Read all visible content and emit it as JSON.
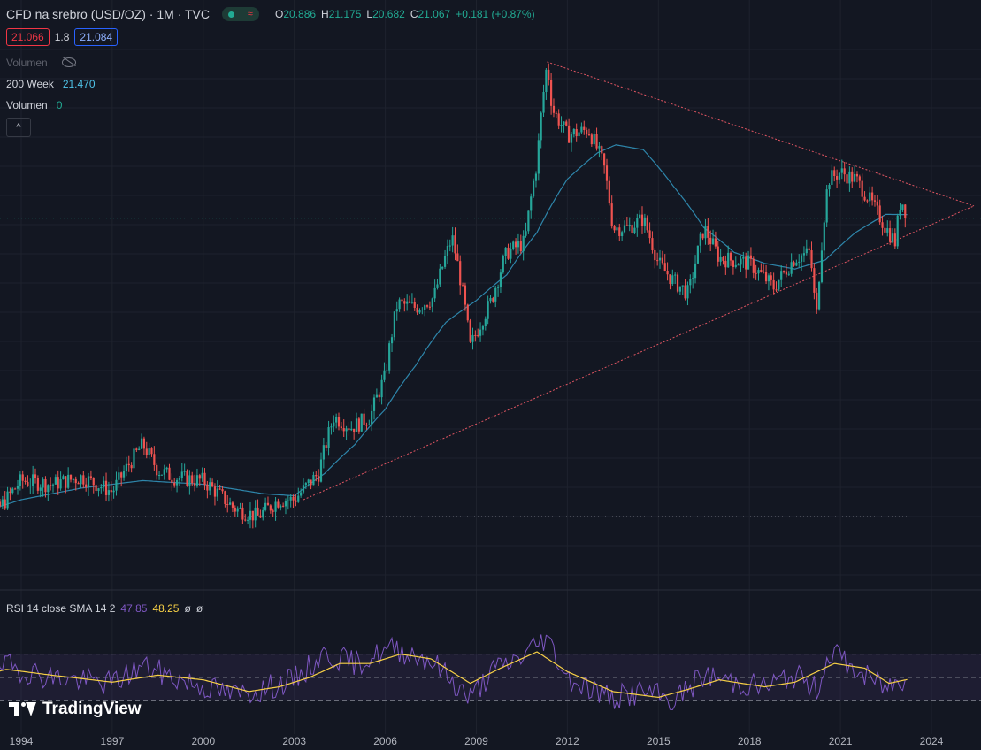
{
  "header": {
    "title": "CFD na srebro (USD/OZ) · 1M · TVC",
    "ohlc": [
      {
        "k": "O",
        "v": "20.886"
      },
      {
        "k": "H",
        "v": "21.175"
      },
      {
        "k": "L",
        "v": "20.682"
      },
      {
        "k": "C",
        "v": "21.067"
      },
      {
        "k": "",
        "v": "+0.181 (+0.87%)"
      }
    ],
    "sell_price": "21.066",
    "spread": "1.8",
    "buy_price": "21.084"
  },
  "indicators": {
    "volume_hidden_label": "Volumen",
    "ma_label": "200 Week",
    "ma_value": "21.470",
    "volume_label": "Volumen",
    "volume_value": "0",
    "collapse_icon": "chevron-up-icon"
  },
  "rsi": {
    "label": "RSI 14 close SMA 14 2",
    "value": "47.85",
    "sma_value": "48.25",
    "extra1": "ø",
    "extra2": "ø",
    "bands": [
      30,
      50,
      70
    ]
  },
  "brand": {
    "name": "TradingView"
  },
  "colors": {
    "background": "#131722",
    "up": "#26a69a",
    "down": "#ef5350",
    "ma": "#2e86ab",
    "trend": "#e05562",
    "rsi": "#7e57c2",
    "rsi_sma": "#f7d046"
  },
  "chart_data": {
    "type": "candlestick",
    "title": "CFD na srebro (USD/OZ) · 1M · TVC",
    "x_ticks": [
      "1994",
      "1997",
      "2000",
      "2003",
      "2006",
      "2009",
      "2012",
      "2015",
      "2018",
      "2021",
      "2024"
    ],
    "x_range": [
      1992.3,
      2025.5
    ],
    "y_scale": "log",
    "y_range": [
      3.5,
      60
    ],
    "price_path": [
      [
        1992.3,
        4.2
      ],
      [
        1992.8,
        4.0
      ],
      [
        1993.5,
        4.6
      ],
      [
        1994.0,
        5.1
      ],
      [
        1995.0,
        5.0
      ],
      [
        1996.0,
        5.2
      ],
      [
        1997.0,
        4.8
      ],
      [
        1998.0,
        6.2
      ],
      [
        1998.5,
        5.4
      ],
      [
        1999.0,
        5.2
      ],
      [
        2000.0,
        5.1
      ],
      [
        2001.0,
        4.4
      ],
      [
        2001.8,
        4.2
      ],
      [
        2002.5,
        4.6
      ],
      [
        2003.0,
        4.6
      ],
      [
        2003.8,
        5.3
      ],
      [
        2004.3,
        7.2
      ],
      [
        2004.9,
        6.8
      ],
      [
        2005.5,
        7.2
      ],
      [
        2006.0,
        9.0
      ],
      [
        2006.4,
        13.3
      ],
      [
        2007.0,
        13.0
      ],
      [
        2007.6,
        13.7
      ],
      [
        2008.2,
        19.0
      ],
      [
        2008.8,
        10.5
      ],
      [
        2009.5,
        13.5
      ],
      [
        2010.0,
        17.5
      ],
      [
        2010.6,
        18.5
      ],
      [
        2011.0,
        28.5
      ],
      [
        2011.33,
        48.5
      ],
      [
        2011.5,
        38.0
      ],
      [
        2012.0,
        33.0
      ],
      [
        2012.7,
        34.0
      ],
      [
        2013.2,
        28.0
      ],
      [
        2013.5,
        20.0
      ],
      [
        2014.0,
        20.0
      ],
      [
        2014.5,
        21.0
      ],
      [
        2015.0,
        16.5
      ],
      [
        2015.5,
        15.0
      ],
      [
        2016.0,
        14.0
      ],
      [
        2016.5,
        20.0
      ],
      [
        2017.0,
        17.0
      ],
      [
        2018.0,
        16.5
      ],
      [
        2018.8,
        14.5
      ],
      [
        2019.5,
        17.0
      ],
      [
        2020.0,
        17.5
      ],
      [
        2020.2,
        12.0
      ],
      [
        2020.6,
        26.0
      ],
      [
        2021.0,
        27.0
      ],
      [
        2021.5,
        26.0
      ],
      [
        2022.0,
        23.0
      ],
      [
        2022.5,
        20.0
      ],
      [
        2022.8,
        18.5
      ],
      [
        2023.0,
        23.5
      ],
      [
        2023.2,
        21.067
      ]
    ],
    "ma_200_week": [
      [
        1992.3,
        4.2
      ],
      [
        1994.0,
        4.6
      ],
      [
        1996.0,
        4.9
      ],
      [
        1998.0,
        5.1
      ],
      [
        2000.0,
        5.0
      ],
      [
        2002.0,
        4.75
      ],
      [
        2003.0,
        4.7
      ],
      [
        2004.0,
        5.3
      ],
      [
        2005.0,
        6.2
      ],
      [
        2006.0,
        7.5
      ],
      [
        2007.0,
        9.5
      ],
      [
        2008.0,
        12.0
      ],
      [
        2009.0,
        13.5
      ],
      [
        2010.0,
        15.5
      ],
      [
        2011.0,
        19.5
      ],
      [
        2012.0,
        26.0
      ],
      [
        2013.0,
        30.0
      ],
      [
        2013.6,
        31.3
      ],
      [
        2014.5,
        30.5
      ],
      [
        2015.5,
        25.0
      ],
      [
        2016.5,
        20.0
      ],
      [
        2017.5,
        17.5
      ],
      [
        2018.5,
        16.5
      ],
      [
        2019.5,
        16.0
      ],
      [
        2020.5,
        16.8
      ],
      [
        2021.5,
        19.5
      ],
      [
        2022.5,
        21.5
      ],
      [
        2023.2,
        21.47
      ]
    ],
    "trendlines": [
      {
        "name": "resistance",
        "from": [
          2011.33,
          49.0
        ],
        "to": [
          2025.4,
          22.5
        ]
      },
      {
        "name": "support",
        "from": [
          2003.3,
          4.6
        ],
        "to": [
          2025.4,
          22.5
        ]
      }
    ],
    "reference_levels": [
      21.067,
      4.2
    ],
    "rsi_range": [
      0,
      100
    ],
    "rsi_path": [
      [
        1992.3,
        45
      ],
      [
        1993.5,
        60
      ],
      [
        1995.0,
        50
      ],
      [
        1997.0,
        45
      ],
      [
        1998.0,
        60
      ],
      [
        1999.0,
        50
      ],
      [
        2001.0,
        35
      ],
      [
        2002.0,
        40
      ],
      [
        2003.0,
        48
      ],
      [
        2004.0,
        70
      ],
      [
        2005.0,
        62
      ],
      [
        2006.3,
        75
      ],
      [
        2007.5,
        65
      ],
      [
        2008.8,
        32
      ],
      [
        2009.5,
        55
      ],
      [
        2010.5,
        68
      ],
      [
        2011.3,
        85
      ],
      [
        2012.0,
        50
      ],
      [
        2013.5,
        32
      ],
      [
        2014.5,
        38
      ],
      [
        2015.5,
        30
      ],
      [
        2016.5,
        52
      ],
      [
        2017.5,
        46
      ],
      [
        2018.5,
        42
      ],
      [
        2019.5,
        52
      ],
      [
        2020.2,
        40
      ],
      [
        2020.7,
        74
      ],
      [
        2021.5,
        55
      ],
      [
        2022.5,
        42
      ],
      [
        2023.2,
        47.85
      ]
    ],
    "rsi_sma_path": [
      [
        1992.3,
        48
      ],
      [
        1993.5,
        57
      ],
      [
        1995.0,
        52
      ],
      [
        1997.0,
        46
      ],
      [
        1998.5,
        52
      ],
      [
        2000.0,
        48
      ],
      [
        2001.5,
        38
      ],
      [
        2002.5,
        42
      ],
      [
        2003.5,
        50
      ],
      [
        2004.5,
        62
      ],
      [
        2005.5,
        62
      ],
      [
        2006.5,
        70
      ],
      [
        2007.5,
        66
      ],
      [
        2008.8,
        45
      ],
      [
        2009.8,
        58
      ],
      [
        2011.0,
        72
      ],
      [
        2012.0,
        55
      ],
      [
        2013.5,
        38
      ],
      [
        2015.0,
        33
      ],
      [
        2016.0,
        40
      ],
      [
        2017.0,
        48
      ],
      [
        2018.5,
        42
      ],
      [
        2019.5,
        46
      ],
      [
        2020.8,
        62
      ],
      [
        2021.8,
        58
      ],
      [
        2022.6,
        45
      ],
      [
        2023.2,
        48.25
      ]
    ]
  }
}
